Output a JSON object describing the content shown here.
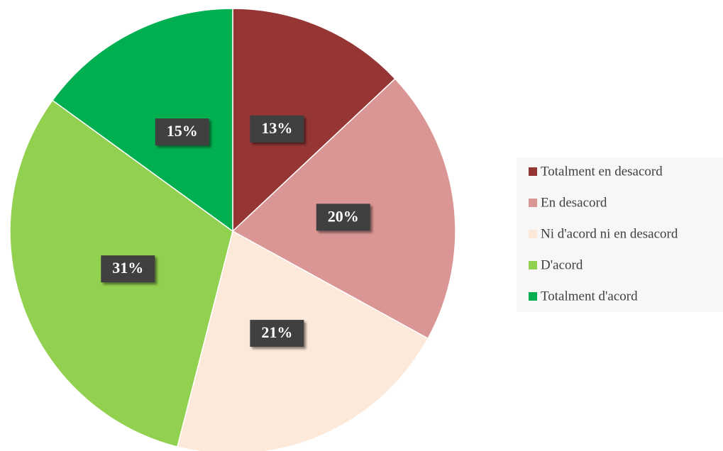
{
  "chart_data": {
    "type": "pie",
    "categories": [
      "Totalment en desacord",
      "En desacord",
      "Ni d'acord ni en desacord",
      "D'acord",
      "Totalment d'acord"
    ],
    "values": [
      13,
      20,
      21,
      31,
      15
    ],
    "value_labels": [
      "13%",
      "20%",
      "21%",
      "31%",
      "15%"
    ],
    "colors": [
      "#963634",
      "#da9694",
      "#fde9d9",
      "#92d050",
      "#00b050"
    ],
    "legend": "right"
  }
}
